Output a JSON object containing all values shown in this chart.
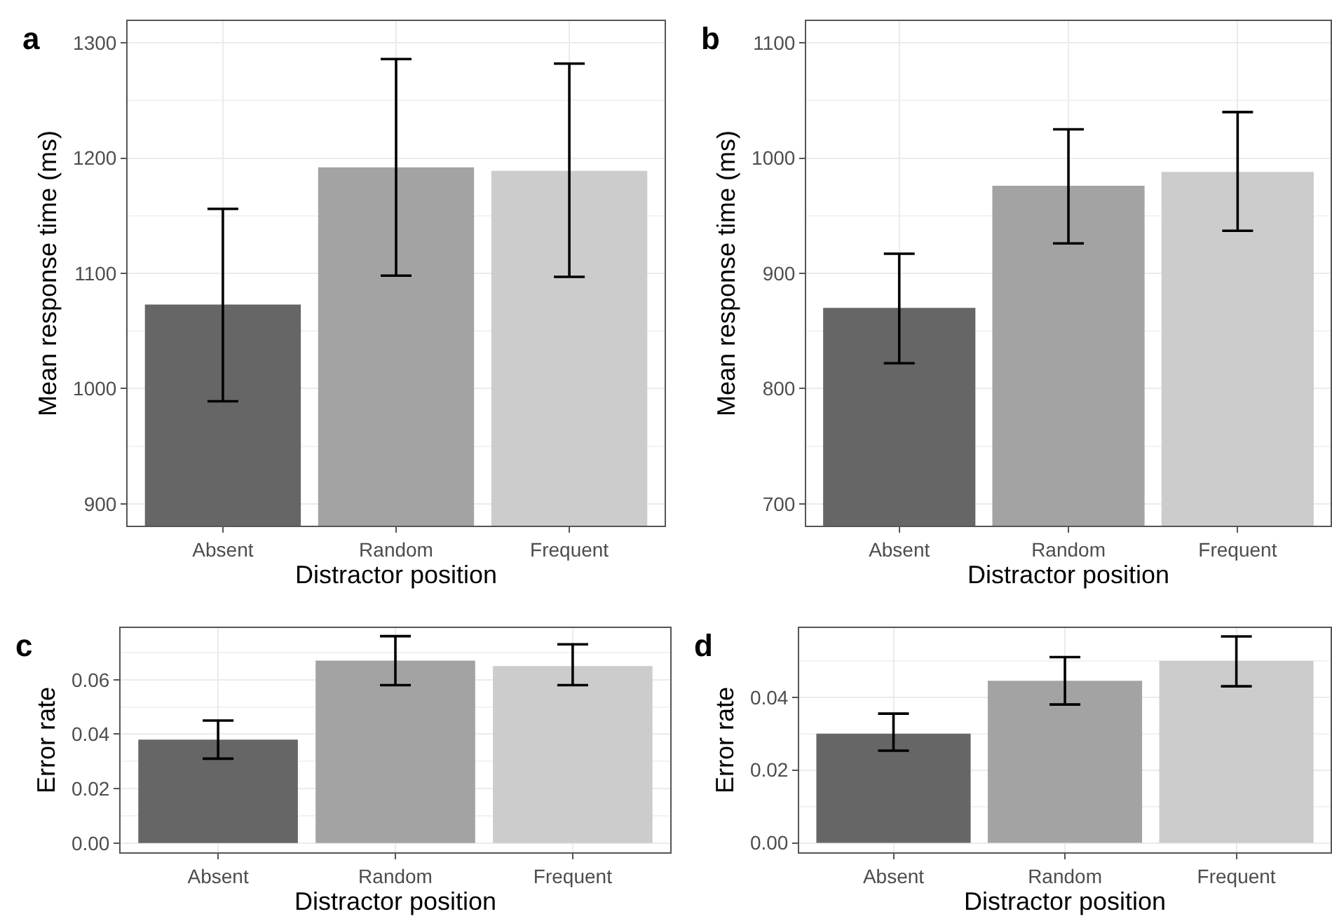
{
  "chart_data": [
    {
      "type": "bar",
      "title": "a",
      "xlabel": "Distractor position",
      "ylabel": "Mean response time (ms)",
      "categories": [
        "Absent",
        "Random",
        "Frequent"
      ],
      "values": [
        1073,
        1192,
        1189
      ],
      "colors": [
        "#666666",
        "#a3a3a3",
        "#cccccc"
      ],
      "errors": [
        [
          989,
          1156
        ],
        [
          1098,
          1286
        ],
        [
          1097,
          1282
        ]
      ],
      "ylim": [
        881,
        1319
      ],
      "yticks": [
        900,
        1000,
        1100,
        1200,
        1300
      ],
      "grid": true
    },
    {
      "type": "bar",
      "title": "b",
      "xlabel": "Distractor position",
      "ylabel": "Mean response time (ms)",
      "categories": [
        "Absent",
        "Random",
        "Frequent"
      ],
      "values": [
        870,
        976,
        988
      ],
      "colors": [
        "#666666",
        "#a3a3a3",
        "#cccccc"
      ],
      "errors": [
        [
          822,
          917
        ],
        [
          926,
          1025
        ],
        [
          937,
          1040
        ]
      ],
      "ylim": [
        681,
        1119
      ],
      "yticks": [
        700,
        800,
        900,
        1000,
        1100
      ],
      "grid": true
    },
    {
      "type": "bar",
      "title": "c",
      "xlabel": "Distractor position",
      "ylabel": "Error rate",
      "categories": [
        "Absent",
        "Random",
        "Frequent"
      ],
      "values": [
        0.038,
        0.067,
        0.065
      ],
      "colors": [
        "#666666",
        "#a3a3a3",
        "#cccccc"
      ],
      "errors": [
        [
          0.031,
          0.045
        ],
        [
          0.058,
          0.076
        ],
        [
          0.058,
          0.073
        ]
      ],
      "ylim": [
        -0.0034,
        0.079
      ],
      "yticks": [
        {
          "value": 0,
          "label": "0.00"
        },
        {
          "value": 0.02,
          "label": "0.02"
        },
        {
          "value": 0.04,
          "label": "0.04"
        },
        {
          "value": 0.06,
          "label": "0.06"
        }
      ],
      "grid": true
    },
    {
      "type": "bar",
      "title": "d",
      "xlabel": "Distractor position",
      "ylabel": "Error rate",
      "categories": [
        "Absent",
        "Random",
        "Frequent"
      ],
      "values": [
        0.03,
        0.0445,
        0.05
      ],
      "colors": [
        "#666666",
        "#a3a3a3",
        "#cccccc"
      ],
      "errors": [
        [
          0.0253,
          0.0355
        ],
        [
          0.038,
          0.051
        ],
        [
          0.043,
          0.0567
        ]
      ],
      "ylim": [
        -0.0026,
        0.059
      ],
      "yticks": [
        {
          "value": 0,
          "label": "0.00"
        },
        {
          "value": 0.02,
          "label": "0.02"
        },
        {
          "value": 0.04,
          "label": "0.04"
        }
      ],
      "grid": true
    }
  ]
}
